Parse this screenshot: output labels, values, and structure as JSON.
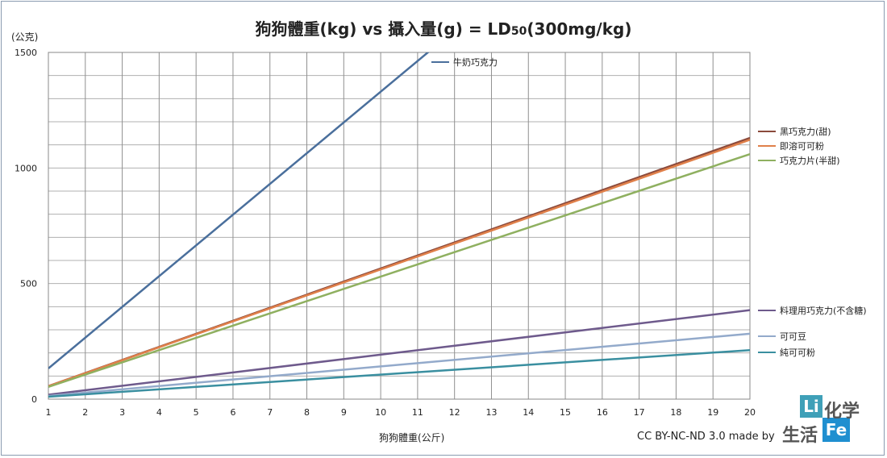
{
  "chart_data": {
    "type": "line",
    "title_main": "狗狗體重(kg) vs 攝入量(g) = LD",
    "title_sub": "50",
    "title_tail": "(300mg/kg)",
    "xlabel": "狗狗體重(公斤)",
    "ylabel": "(公克)",
    "xlim": [
      1,
      20
    ],
    "ylim": [
      0,
      1500
    ],
    "x_ticks": [
      "1",
      "2",
      "3",
      "4",
      "5",
      "6",
      "7",
      "8",
      "9",
      "10",
      "11",
      "12",
      "13",
      "14",
      "15",
      "16",
      "17",
      "18",
      "19",
      "20"
    ],
    "y_ticks": [
      "0",
      "500",
      "1000",
      "1500"
    ],
    "grid": true,
    "legend_placement": "right, at line ends",
    "series": [
      {
        "name": "牛奶巧克力",
        "color": "#4a6f9c",
        "x": [
          1,
          20
        ],
        "y": [
          133,
          2660
        ]
      },
      {
        "name": "黑巧克力(甜)",
        "color": "#8b4a3c",
        "x": [
          1,
          20
        ],
        "y": [
          56.5,
          1130
        ]
      },
      {
        "name": "即溶可可粉",
        "color": "#e0804a",
        "x": [
          1,
          20
        ],
        "y": [
          56,
          1122
        ]
      },
      {
        "name": "巧克力片(半甜)",
        "color": "#8fb060",
        "x": [
          1,
          20
        ],
        "y": [
          53,
          1060
        ]
      },
      {
        "name": "料理用巧克力(不含糖)",
        "color": "#6e5a8c",
        "x": [
          1,
          20
        ],
        "y": [
          19.2,
          385
        ]
      },
      {
        "name": "可可豆",
        "color": "#93aacb",
        "x": [
          1,
          20
        ],
        "y": [
          14.1,
          283
        ]
      },
      {
        "name": "純可可粉",
        "color": "#3a8fa0",
        "x": [
          1,
          20
        ],
        "y": [
          10.6,
          212
        ]
      }
    ]
  },
  "credit": "CC BY-NC-ND 3.0 made by",
  "logo": {
    "li": "Li",
    "fe": "Fe",
    "text1": "化学",
    "text2": "生活"
  }
}
